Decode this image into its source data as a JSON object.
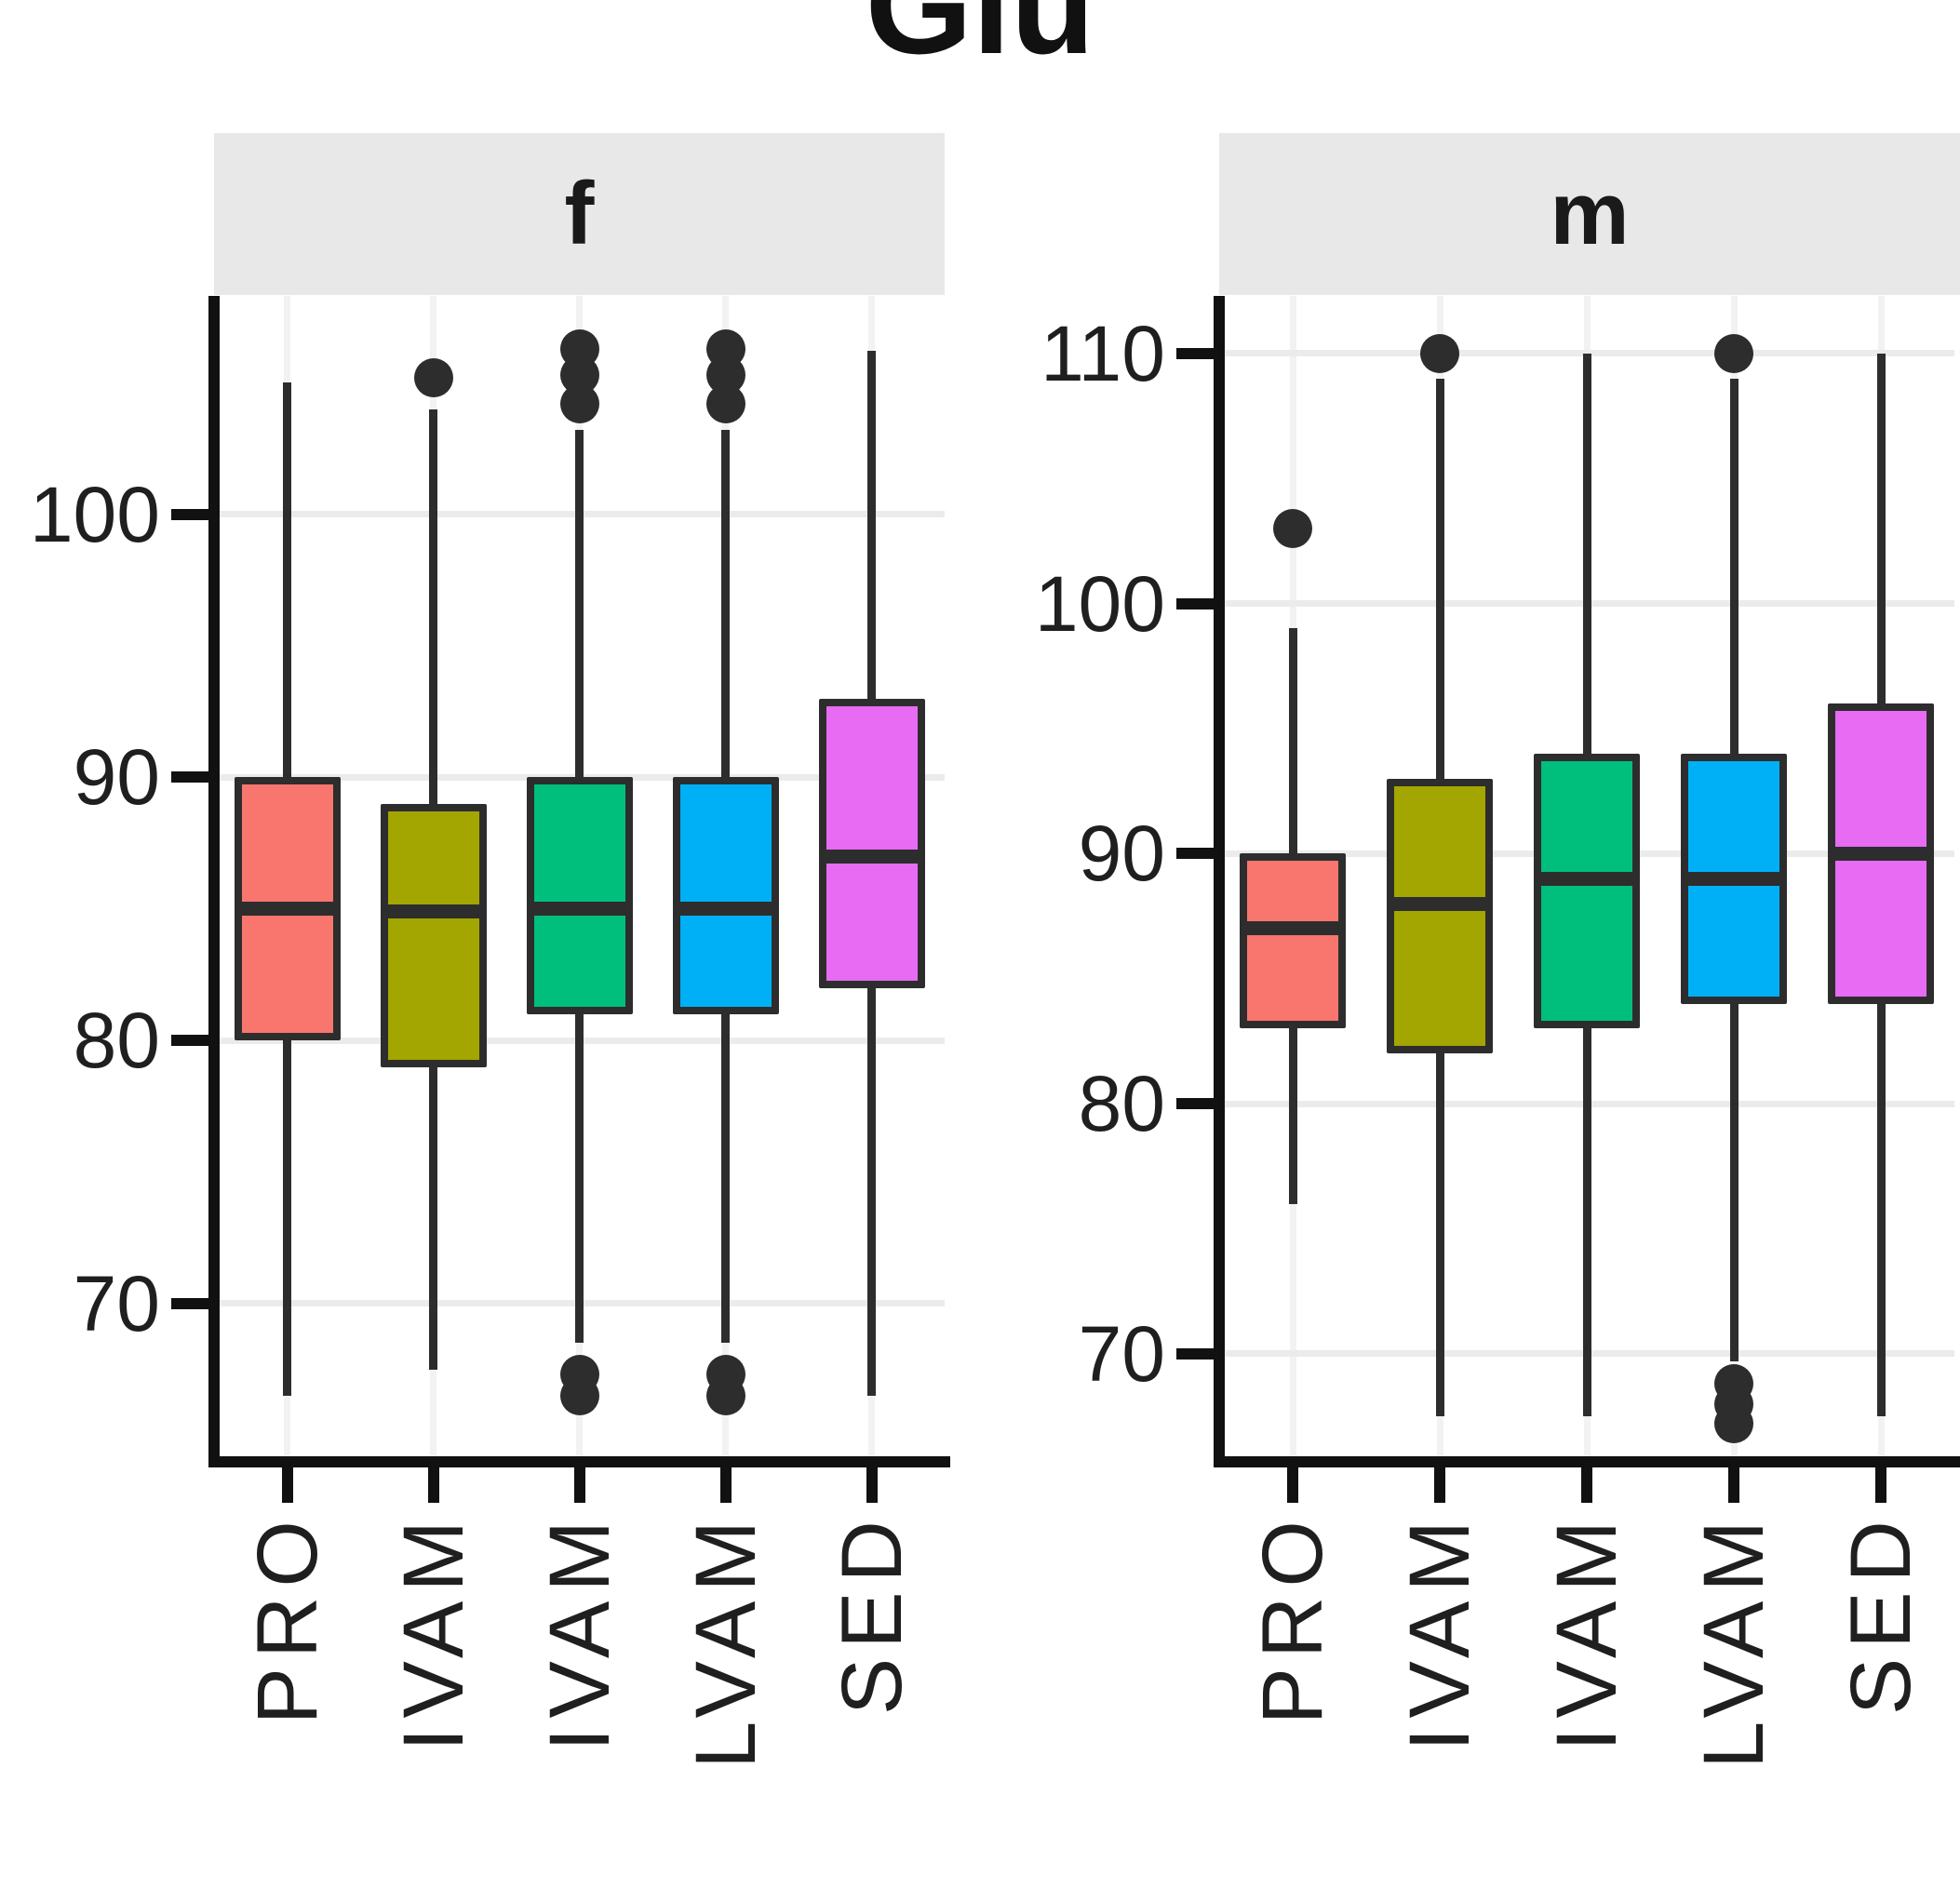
{
  "title": "Glu",
  "colors": {
    "box_border": "#2D2D2D",
    "strip_background": "#E8E8E8",
    "grid_horizontal": "#EBEBEB",
    "grid_vertical": "#F2F2F2",
    "axis": "#111111"
  },
  "chart_data": {
    "type": "boxplot",
    "title": "Glu",
    "legend": "none",
    "grid": "on",
    "facets": [
      {
        "label": "f",
        "y_ticks": [
          100,
          90,
          80,
          70
        ],
        "y_range": [
          64.2,
          108.3
        ],
        "categories": [
          "PRO",
          "IVAM",
          "IVAM",
          "LVAM",
          "SED"
        ],
        "boxes": [
          {
            "category": "PRO",
            "color": "#F8766D",
            "whisker_low": 66.5,
            "q1": 80,
            "median": 85,
            "q3": 90,
            "whisker_high": 105,
            "outliers_high": [],
            "outliers_low": []
          },
          {
            "category": "IVAM",
            "color": "#A3A500",
            "whisker_low": 67.5,
            "q1": 79,
            "median": 84.9,
            "q3": 89,
            "whisker_high": 104,
            "outliers_high": [
              105.2
            ],
            "outliers_low": []
          },
          {
            "category": "IVAM",
            "color": "#00BF7D",
            "whisker_low": 68.5,
            "q1": 81,
            "median": 85,
            "q3": 90,
            "whisker_high": 103.2,
            "outliers_high": [
              104.2,
              105.3,
              106.3
            ],
            "outliers_low": [
              67.3,
              66.5
            ]
          },
          {
            "category": "LVAM",
            "color": "#00B0F6",
            "whisker_low": 68.5,
            "q1": 81,
            "median": 85,
            "q3": 90,
            "whisker_high": 103.2,
            "outliers_high": [
              104.2,
              105.3,
              106.3
            ],
            "outliers_low": [
              67.3,
              66.5
            ]
          },
          {
            "category": "SED",
            "color": "#E76BF3",
            "whisker_low": 66.5,
            "q1": 82,
            "median": 87,
            "q3": 93,
            "whisker_high": 106.2,
            "outliers_high": [],
            "outliers_low": []
          }
        ]
      },
      {
        "label": "m",
        "y_ticks": [
          110,
          100,
          90,
          80,
          70
        ],
        "y_range": [
          65.9,
          112.3
        ],
        "categories": [
          "PRO",
          "IVAM",
          "IVAM",
          "LVAM",
          "SED"
        ],
        "boxes": [
          {
            "category": "PRO",
            "color": "#F8766D",
            "whisker_low": 76,
            "q1": 83,
            "median": 87,
            "q3": 90,
            "whisker_high": 99,
            "outliers_high": [
              103
            ],
            "outliers_low": []
          },
          {
            "category": "IVAM",
            "color": "#A3A500",
            "whisker_low": 67.5,
            "q1": 82,
            "median": 88,
            "q3": 93,
            "whisker_high": 109,
            "outliers_high": [
              110
            ],
            "outliers_low": []
          },
          {
            "category": "IVAM",
            "color": "#00BF7D",
            "whisker_low": 67.5,
            "q1": 83,
            "median": 89,
            "q3": 94,
            "whisker_high": 110,
            "outliers_high": [],
            "outliers_low": []
          },
          {
            "category": "LVAM",
            "color": "#00B0F6",
            "whisker_low": 69.7,
            "q1": 84,
            "median": 89,
            "q3": 94,
            "whisker_high": 109,
            "outliers_high": [
              110
            ],
            "outliers_low": [
              68.8,
              68,
              67.2
            ]
          },
          {
            "category": "SED",
            "color": "#E76BF3",
            "whisker_low": 67.5,
            "q1": 84,
            "median": 90,
            "q3": 96,
            "whisker_high": 110,
            "outliers_high": [],
            "outliers_low": []
          }
        ]
      }
    ]
  }
}
